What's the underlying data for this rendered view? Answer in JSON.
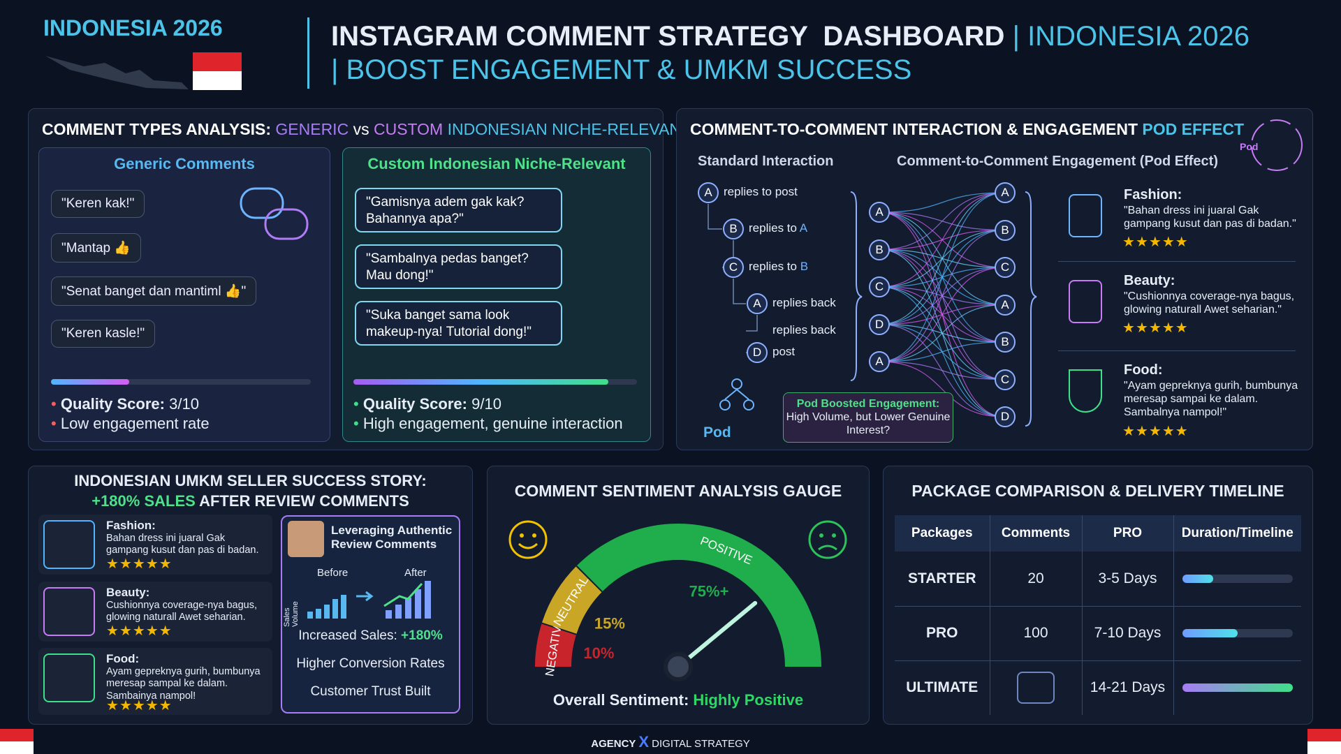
{
  "header": {
    "badge": "INDONESIA 2026",
    "title": "INSTAGRAM COMMENT STRATEGY  DASHBOARD",
    "title_accent": "| INDONESIA 2026",
    "subtitle": "| BOOST ENGAGEMENT & UMKM SUCCESS"
  },
  "comment_types": {
    "title": "COMMENT TYPES ANALYSIS:",
    "title_generic": "GENERIC",
    "title_vs": "vs",
    "title_custom": "CUSTOM",
    "title_niche": "INDONESIAN NICHE-RELEVANT",
    "generic": {
      "heading": "Generic Comments",
      "comments": [
        "\"Keren kak!\"",
        "\"Mantap 👍",
        "\"Senat banget dan mantiml 👍\"",
        "\"Keren kasle!\""
      ],
      "score": 3,
      "score_max": 10,
      "quality_label": "Quality Score:",
      "quality_value": "3/10",
      "note": "Low engagement rate"
    },
    "custom": {
      "heading": "Custom Indonesian Niche-Relevant",
      "comments": [
        "\"Gamisnya adem gak kak? Bahannya apa?\"",
        "\"Sambalnya pedas banget? Mau dong!\"",
        "\"Suka banget sama look makeup-nya! Tutorial dong!\""
      ],
      "score": 9,
      "score_max": 10,
      "quality_label": "Quality Score:",
      "quality_value": "9/10",
      "note": "High engagement, genuine interaction"
    }
  },
  "pod": {
    "title": "COMMENT-TO-COMMENT INTERACTION & ENGAGEMENT",
    "title_accent": "POD EFFECT",
    "icon_label": "Pod",
    "standard_heading": "Standard Interaction",
    "pod_heading": "Comment-to-Comment Engagement (Pod Effect)",
    "thread": [
      {
        "node": "A",
        "text": "replies to post"
      },
      {
        "node": "B",
        "text": "replies to",
        "ref": "A"
      },
      {
        "node": "C",
        "text": "replies to",
        "ref": "B"
      },
      {
        "node": "A",
        "text": "replies back"
      },
      {
        "text": "replies back"
      },
      {
        "node": "D",
        "text": "post"
      }
    ],
    "left_nodes": [
      "A",
      "B",
      "C",
      "D",
      "A"
    ],
    "right_nodes": [
      "A",
      "B",
      "C",
      "A",
      "B",
      "C",
      "D"
    ],
    "pod_label": "Pod",
    "callout_title": "Pod Boosted Engagement:",
    "callout_text": "High Volume, but Lower Genuine Interest?",
    "examples": [
      {
        "category": "Fashion:",
        "text": "\"Bahan dress ini juaral Gak gampang kusut dan pas di badan.\"",
        "rating": 5
      },
      {
        "category": "Beauty:",
        "text": "\"Cushionnya coverage-nya bagus, glowing naturall Awet seharian.\"",
        "rating": 5
      },
      {
        "category": "Food:",
        "text": "\"Ayam gepreknya gurih, bumbunya meresap sampai ke dalam. Sambalnya nampol!\"",
        "rating": 5
      }
    ]
  },
  "umkm": {
    "title": "INDONESIAN UMKM SELLER SUCCESS STORY:",
    "title_accent": "+180% SALES",
    "title_rest": "AFTER REVIEW COMMENTS",
    "items": [
      {
        "category": "Fashion:",
        "text": "Bahan dress ini juaral Gak gampang kusut dan pas di badan.",
        "rating": 5
      },
      {
        "category": "Beauty:",
        "text": "Cushionnya coverage-nya bagus, glowing naturall Awet seharian.",
        "rating": 5
      },
      {
        "category": "Food:",
        "text": "Ayam gepreknya gurih, bumbunya meresap sampal ke dalam. Sambainya nampol!",
        "rating": 5
      }
    ],
    "card": {
      "title": "Leveraging Authentic Review Comments",
      "before": "Before",
      "after": "After",
      "axis": "Sales Volume",
      "increase_label": "Increased Sales:",
      "increase_value": "+180%",
      "points": [
        "Higher Conversion Rates",
        "Customer Trust Built"
      ]
    }
  },
  "gauge": {
    "title": "COMMENT SENTIMENT ANALYSIS GAUGE",
    "segments": [
      {
        "name": "NEGATIVE",
        "value": 10,
        "label": "10%",
        "color": "#c8242c"
      },
      {
        "name": "NEUTRAL",
        "value": 15,
        "label": "15%",
        "color": "#c9a626"
      },
      {
        "name": "POSITIVE",
        "value": 75,
        "label": "75%+",
        "color": "#1fae4b"
      }
    ],
    "overall_label": "Overall Sentiment:",
    "overall_value": "Highly Positive"
  },
  "packages": {
    "title": "PACKAGE COMPARISON & DELIVERY TIMELINE",
    "columns": [
      "Packages",
      "Comments",
      "PRO",
      "Duration/Timeline"
    ],
    "rows": [
      {
        "name": "STARTER",
        "comments": 20,
        "duration": "3-5 Days"
      },
      {
        "name": "PRO",
        "comments": 100,
        "duration": "7-10 Days"
      },
      {
        "name": "ULTIMATE",
        "duration": "14-21 Days"
      }
    ]
  },
  "footer": {
    "brand": "AGENCY",
    "mark": "X",
    "tagline": "DIGITAL STRATEGY"
  }
}
